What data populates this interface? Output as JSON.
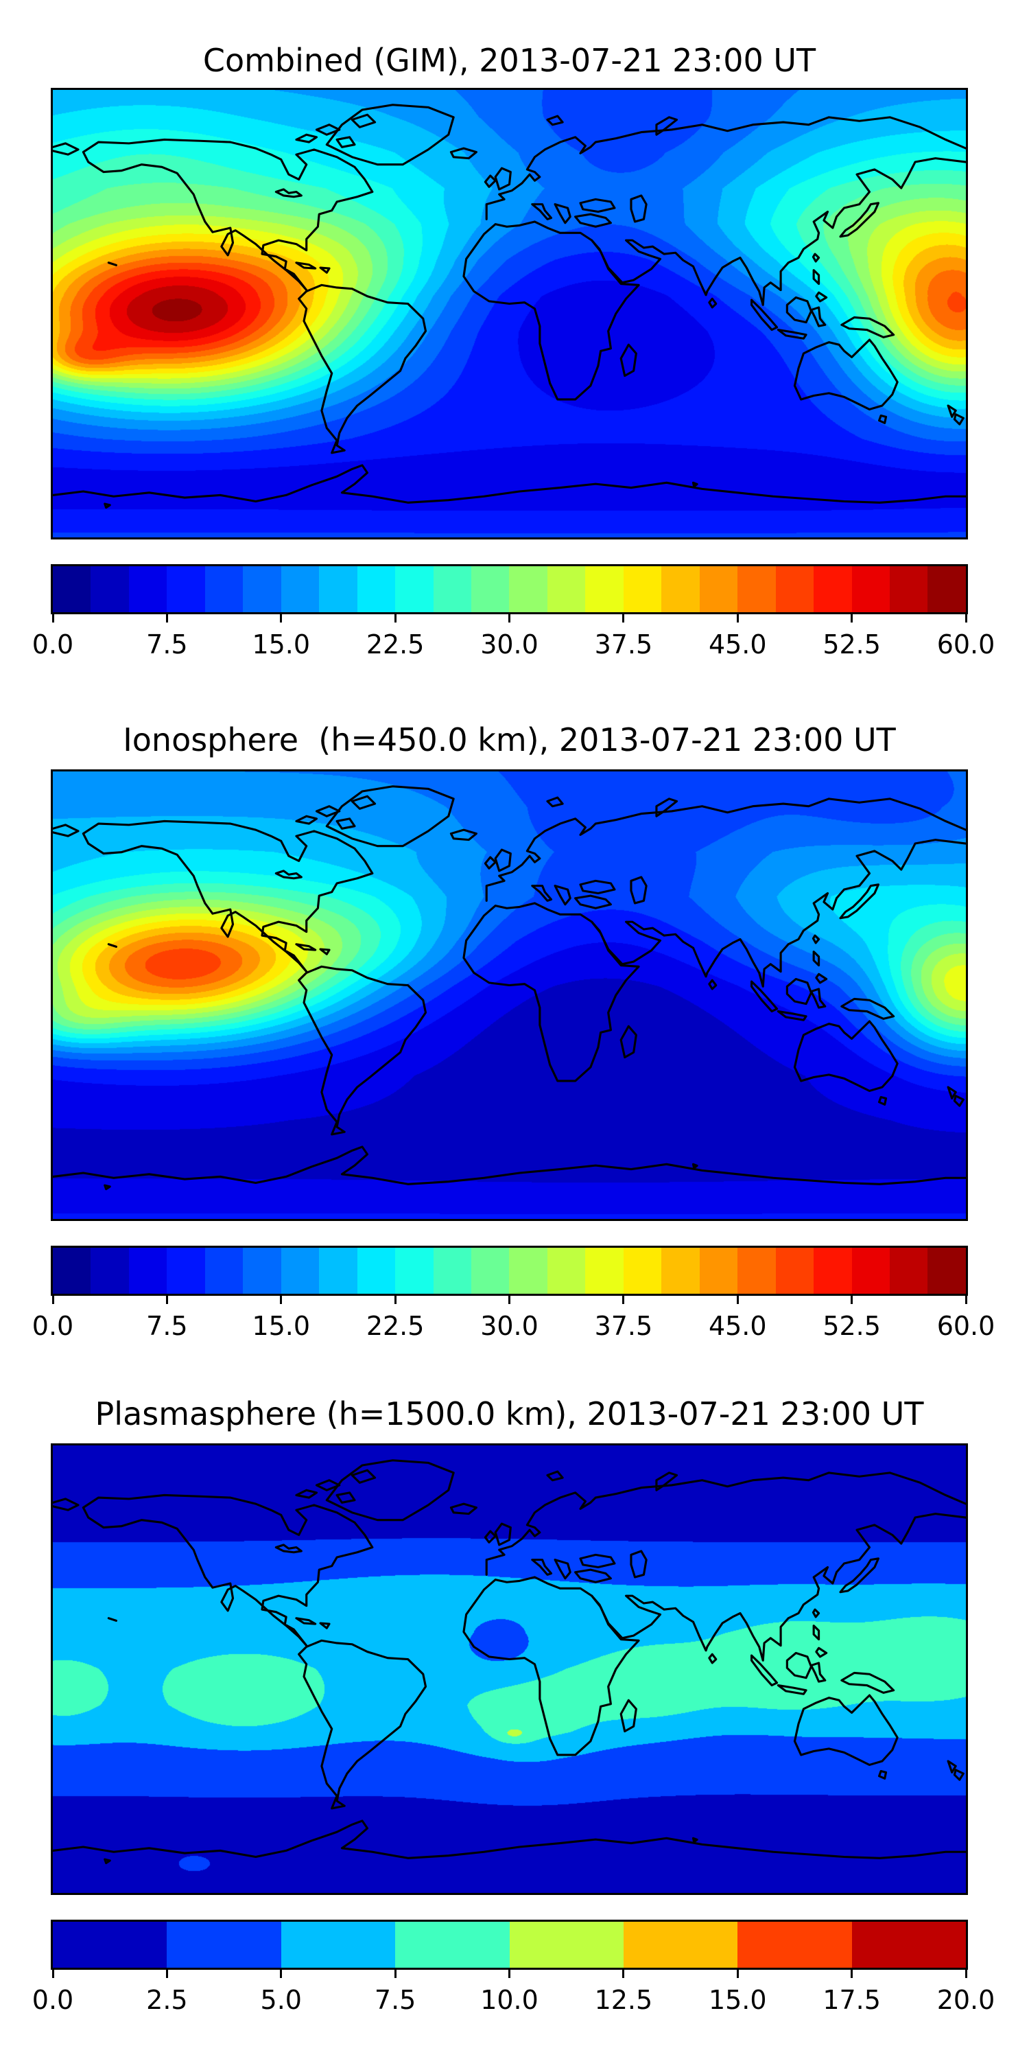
{
  "figure": {
    "background_color": "#ffffff",
    "coastline_color": "#000000",
    "frame_color": "#000000",
    "text_color": "#000000"
  },
  "chart_data": {
    "type": "heatmap",
    "subtype": "filled-contour world maps, equirectangular projection (lon -180..180, lat -90..90), with coastlines and horizontal discrete colorbars",
    "colormap": "jet",
    "panels": [
      {
        "title": "Combined (GIM), 2013-07-21 23:00 UT",
        "layer": "Combined (GIM)",
        "timestamp": "2013-07-21 23:00 UT",
        "vmin": 0.0,
        "vmax": 60.0,
        "contour_step": 2.5,
        "n_segments": 24,
        "colorbar_ticks": [
          0.0,
          7.5,
          15.0,
          22.5,
          30.0,
          37.5,
          45.0,
          52.5,
          60.0
        ],
        "colorbar_tick_labels": [
          "0.0",
          "7.5",
          "15.0",
          "22.5",
          "30.0",
          "37.5",
          "45.0",
          "52.5",
          "60.0"
        ],
        "peak_value_approx": 59,
        "peak_lonlat_approx": [
          -131,
          0
        ],
        "field_model": {
          "lat_profile": [
            [
              0,
              17
            ],
            [
              0.06,
              18.5
            ],
            [
              0.14,
              21
            ],
            [
              0.22,
              22
            ],
            [
              0.3,
              20
            ],
            [
              0.38,
              16
            ],
            [
              0.46,
              13
            ],
            [
              0.54,
              11.5
            ],
            [
              0.62,
              10.5
            ],
            [
              0.7,
              9.5
            ],
            [
              0.78,
              8.5
            ],
            [
              0.86,
              6
            ],
            [
              0.93,
              7
            ],
            [
              1,
              10.5
            ]
          ],
          "blobs": [
            {
              "u": 0.135,
              "v": 0.5,
              "su": 0.14,
              "sv": 0.13,
              "amp": 46,
              "rot": -10
            },
            {
              "u": 0.03,
              "v": 0.6,
              "su": 0.035,
              "sv": 0.035,
              "amp": 10,
              "rot": 0
            },
            {
              "u": 0.33,
              "v": 0.38,
              "su": 0.08,
              "sv": 0.08,
              "amp": 6,
              "rot": 0
            },
            {
              "u": 0.994,
              "v": 0.5,
              "su": 0.075,
              "sv": 0.14,
              "amp": 34,
              "rot": 0
            },
            {
              "u": 0.86,
              "v": 0.35,
              "su": 0.1,
              "sv": 0.11,
              "amp": 9,
              "rot": 0
            },
            {
              "u": 0.6,
              "v": 0.5,
              "su": 0.16,
              "sv": 0.14,
              "amp": -6,
              "rot": 0
            },
            {
              "u": 0.63,
              "v": 0.15,
              "su": 0.13,
              "sv": 0.16,
              "amp": -9,
              "rot": 0
            },
            {
              "u": 0.1,
              "v": 0.12,
              "su": 0.1,
              "sv": 0.1,
              "amp": 3,
              "rot": 0
            }
          ]
        }
      },
      {
        "title": "Ionosphere  (h=450.0 km), 2013-07-21 23:00 UT",
        "layer": "Ionosphere",
        "height_km": 450.0,
        "timestamp": "2013-07-21 23:00 UT",
        "vmin": 0.0,
        "vmax": 60.0,
        "contour_step": 2.5,
        "n_segments": 24,
        "colorbar_ticks": [
          0.0,
          7.5,
          15.0,
          22.5,
          30.0,
          37.5,
          45.0,
          52.5,
          60.0
        ],
        "colorbar_tick_labels": [
          "0.0",
          "7.5",
          "15.0",
          "22.5",
          "30.0",
          "37.5",
          "45.0",
          "52.5",
          "60.0"
        ],
        "peak_value_approx": 49,
        "peak_lonlat_approx": [
          -130,
          11
        ],
        "field_model": {
          "lat_profile": [
            [
              0,
              15
            ],
            [
              0.08,
              17
            ],
            [
              0.18,
              18.5
            ],
            [
              0.28,
              17
            ],
            [
              0.38,
              13
            ],
            [
              0.48,
              10
            ],
            [
              0.58,
              8
            ],
            [
              0.68,
              6
            ],
            [
              0.78,
              5
            ],
            [
              0.88,
              4.5
            ],
            [
              0.94,
              5.5
            ],
            [
              1,
              8
            ]
          ],
          "blobs": [
            {
              "u": 0.14,
              "v": 0.44,
              "su": 0.125,
              "sv": 0.105,
              "amp": 38,
              "rot": -10
            },
            {
              "u": 0.02,
              "v": 0.56,
              "su": 0.045,
              "sv": 0.045,
              "amp": 8,
              "rot": 0
            },
            {
              "u": 0.35,
              "v": 0.37,
              "su": 0.08,
              "sv": 0.08,
              "amp": 6,
              "rot": 0
            },
            {
              "u": 1.0,
              "v": 0.49,
              "su": 0.06,
              "sv": 0.1,
              "amp": 26,
              "rot": 0
            },
            {
              "u": 0.87,
              "v": 0.34,
              "su": 0.1,
              "sv": 0.1,
              "amp": 6,
              "rot": 0
            },
            {
              "u": 0.6,
              "v": 0.52,
              "su": 0.16,
              "sv": 0.15,
              "amp": -5,
              "rot": 0
            },
            {
              "u": 0.63,
              "v": 0.15,
              "su": 0.13,
              "sv": 0.16,
              "amp": -7,
              "rot": 0
            },
            {
              "u": 0.93,
              "v": 0.1,
              "su": 0.1,
              "sv": 0.09,
              "amp": -5,
              "rot": 0
            }
          ]
        }
      },
      {
        "title": "Plasmasphere (h=1500.0 km), 2013-07-21 23:00 UT",
        "layer": "Plasmasphere",
        "height_km": 1500.0,
        "timestamp": "2013-07-21 23:00 UT",
        "vmin": 0.0,
        "vmax": 20.0,
        "contour_step": 2.5,
        "n_segments": 8,
        "colorbar_ticks": [
          0.0,
          2.5,
          5.0,
          7.5,
          10.0,
          12.5,
          15.0,
          17.5,
          20.0
        ],
        "colorbar_tick_labels": [
          "0.0",
          "2.5",
          "5.0",
          "7.5",
          "10.0",
          "12.5",
          "15.0",
          "17.5",
          "20.0"
        ],
        "peak_value_approx": 10.5,
        "peak_lonlat_approx": [
          2,
          -26
        ],
        "field_model": {
          "lat_profile": [
            [
              0,
              1.6
            ],
            [
              0.1,
              1.8
            ],
            [
              0.2,
              2.2
            ],
            [
              0.26,
              3.3
            ],
            [
              0.33,
              5.3
            ],
            [
              0.42,
              6.4
            ],
            [
              0.5,
              6.6
            ],
            [
              0.58,
              6.2
            ],
            [
              0.64,
              5.4
            ],
            [
              0.7,
              3.6
            ],
            [
              0.76,
              2.7
            ],
            [
              0.84,
              2.0
            ],
            [
              1,
              1.5
            ]
          ],
          "blobs": [
            {
              "u": 0.21,
              "v": 0.57,
              "su": 0.07,
              "sv": 0.075,
              "amp": 2.6,
              "rot": 0
            },
            {
              "u": 0.52,
              "v": 0.62,
              "su": 0.06,
              "sv": 0.08,
              "amp": 2.8,
              "rot": 0
            },
            {
              "u": 0.505,
              "v": 0.645,
              "su": 0.013,
              "sv": 0.013,
              "amp": 2.6,
              "rot": 0
            },
            {
              "u": 0.66,
              "v": 0.55,
              "su": 0.055,
              "sv": 0.075,
              "amp": 2.4,
              "rot": 0
            },
            {
              "u": 0.81,
              "v": 0.5,
              "su": 0.06,
              "sv": 0.085,
              "amp": 3.0,
              "rot": 0
            },
            {
              "u": 0.965,
              "v": 0.47,
              "su": 0.06,
              "sv": 0.075,
              "amp": 3.0,
              "rot": 0
            },
            {
              "u": 0.01,
              "v": 0.56,
              "su": 0.04,
              "sv": 0.065,
              "amp": 2.0,
              "rot": 0
            },
            {
              "u": 0.49,
              "v": 0.45,
              "su": 0.035,
              "sv": 0.05,
              "amp": -2.6,
              "rot": 0
            },
            {
              "u": 0.42,
              "v": 0.3,
              "su": 0.12,
              "sv": 0.05,
              "amp": 0.9,
              "rot": 0
            },
            {
              "u": 0.75,
              "v": 0.655,
              "su": 0.1,
              "sv": 0.05,
              "amp": -0.9,
              "rot": 0
            },
            {
              "u": 0.155,
              "v": 0.935,
              "su": 0.012,
              "sv": 0.012,
              "amp": 2.2,
              "rot": 0
            }
          ]
        }
      }
    ]
  }
}
